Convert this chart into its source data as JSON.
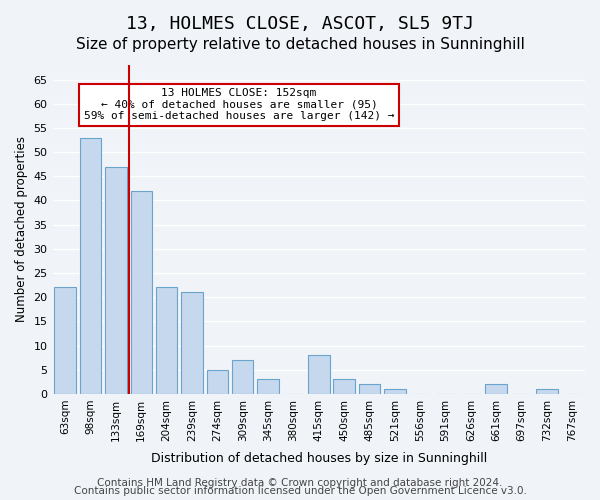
{
  "title": "13, HOLMES CLOSE, ASCOT, SL5 9TJ",
  "subtitle": "Size of property relative to detached houses in Sunninghill",
  "xlabel": "Distribution of detached houses by size in Sunninghill",
  "ylabel": "Number of detached properties",
  "bin_labels": [
    "63sqm",
    "98sqm",
    "133sqm",
    "169sqm",
    "204sqm",
    "239sqm",
    "274sqm",
    "309sqm",
    "345sqm",
    "380sqm",
    "415sqm",
    "450sqm",
    "485sqm",
    "521sqm",
    "556sqm",
    "591sqm",
    "626sqm",
    "661sqm",
    "697sqm",
    "732sqm",
    "767sqm"
  ],
  "bar_values": [
    22,
    53,
    47,
    42,
    22,
    21,
    5,
    7,
    3,
    0,
    8,
    3,
    2,
    1,
    0,
    0,
    0,
    2,
    0,
    1,
    0
  ],
  "bar_color": "#c5d8ed",
  "bar_edge_color": "#6aa3cb",
  "vline_x": 3,
  "vline_color": "#cc0000",
  "ylim": [
    0,
    68
  ],
  "yticks": [
    0,
    5,
    10,
    15,
    20,
    25,
    30,
    35,
    40,
    45,
    50,
    55,
    60,
    65
  ],
  "annotation_text": "13 HOLMES CLOSE: 152sqm\n← 40% of detached houses are smaller (95)\n59% of semi-detached houses are larger (142) →",
  "annotation_box_color": "#ffffff",
  "annotation_box_edge_color": "#cc0000",
  "footer_line1": "Contains HM Land Registry data © Crown copyright and database right 2024.",
  "footer_line2": "Contains public sector information licensed under the Open Government Licence v3.0.",
  "background_color": "#f0f4f8",
  "plot_bg_color": "#f0f4f8",
  "grid_color": "#ffffff",
  "title_fontsize": 13,
  "subtitle_fontsize": 11,
  "footer_fontsize": 7.5
}
